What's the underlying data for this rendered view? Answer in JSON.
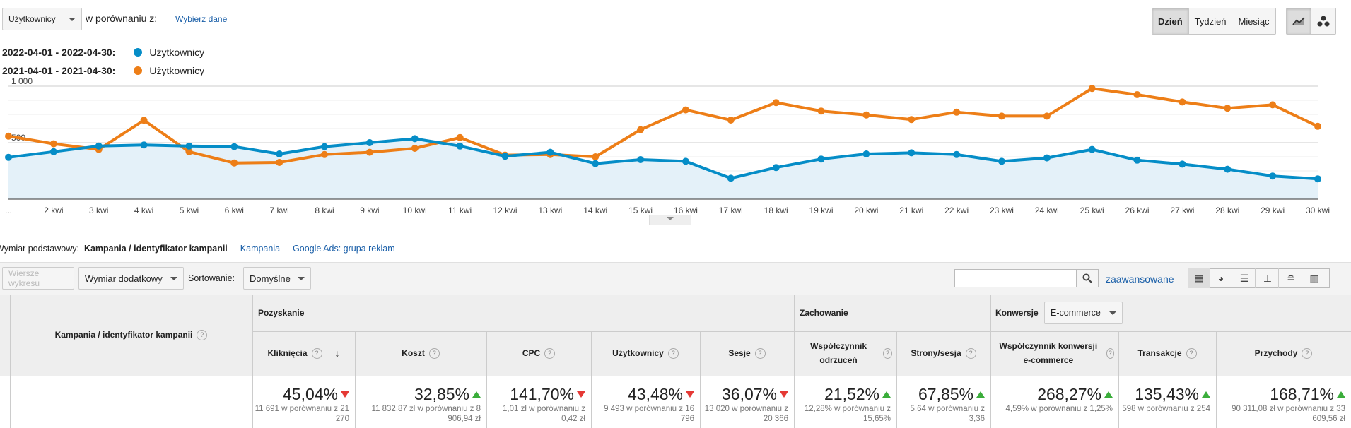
{
  "top": {
    "metric_select": "Użytkownicy",
    "compare_label": "w porównaniu z:",
    "choose_link": "Wybierz dane",
    "period_buttons": [
      "Dzień",
      "Tydzień",
      "Miesiąc"
    ],
    "active_period": "Dzień"
  },
  "legend": [
    {
      "range": "2022-04-01 - 2022-04-30:",
      "label": "Użytkownicy",
      "color": "#058dc7"
    },
    {
      "range": "2021-04-01 - 2021-04-30:",
      "label": "Użytkownicy",
      "color": "#ed7e17"
    }
  ],
  "chart_data": {
    "type": "line",
    "x": [
      "...",
      "2 kwi",
      "3 kwi",
      "4 kwi",
      "5 kwi",
      "6 kwi",
      "7 kwi",
      "8 kwi",
      "9 kwi",
      "10 kwi",
      "11 kwi",
      "12 kwi",
      "13 kwi",
      "14 kwi",
      "15 kwi",
      "16 kwi",
      "17 kwi",
      "18 kwi",
      "19 kwi",
      "20 kwi",
      "21 kwi",
      "22 kwi",
      "23 kwi",
      "24 kwi",
      "25 kwi",
      "26 kwi",
      "27 kwi",
      "28 kwi",
      "29 kwi",
      "30 kwi"
    ],
    "y_ticks": [
      "1 000",
      "500"
    ],
    "ylim": [
      0,
      1000
    ],
    "series": [
      {
        "name": "2022-04 Użytkownicy",
        "color": "#058dc7",
        "values": [
          370,
          420,
          470,
          480,
          470,
          465,
          400,
          465,
          500,
          535,
          470,
          380,
          415,
          315,
          350,
          335,
          185,
          280,
          355,
          400,
          410,
          395,
          335,
          365,
          440,
          345,
          310,
          265,
          205,
          180
        ]
      },
      {
        "name": "2021-04 Użytkownicy",
        "color": "#ed7e17",
        "values": [
          558,
          490,
          440,
          698,
          420,
          320,
          325,
          395,
          415,
          450,
          545,
          390,
          395,
          375,
          615,
          790,
          700,
          855,
          780,
          745,
          705,
          770,
          735,
          735,
          980,
          925,
          860,
          805,
          835,
          645
        ]
      }
    ]
  },
  "dimension": {
    "label": "Wymiar podstawowy:",
    "active": "Kampania / identyfikator kampanii",
    "options": [
      "Kampania",
      "Google Ads: grupa reklam"
    ]
  },
  "toolbar": {
    "chart_rows": "Wiersze wykresu",
    "secondary": "Wymiar dodatkowy",
    "sort_label": "Sortowanie:",
    "sort_value": "Domyślne",
    "advanced": "zaawansowane"
  },
  "table": {
    "dim_header": "Kampania / identyfikator kampanii",
    "groups": {
      "acquisition": "Pozyskanie",
      "behavior": "Zachowanie",
      "conversions": "Konwersje",
      "conv_select": "E-commerce"
    },
    "columns": [
      {
        "name": "Kliknięcia",
        "pct": "45,04%",
        "dir": "down",
        "sub": "11 691 w porównaniu z 21 270"
      },
      {
        "name": "Koszt",
        "pct": "32,85%",
        "dir": "up",
        "sub": "11 832,87 zł w porównaniu z 8 906,94 zł"
      },
      {
        "name": "CPC",
        "pct": "141,70%",
        "dir": "down",
        "sub": "1,01 zł w porównaniu z 0,42 zł"
      },
      {
        "name": "Użytkownicy",
        "pct": "43,48%",
        "dir": "down",
        "sub": "9 493 w porównaniu z 16 796"
      },
      {
        "name": "Sesje",
        "pct": "36,07%",
        "dir": "down",
        "sub": "13 020 w porównaniu z 20 366"
      },
      {
        "name": "Współczynnik odrzuceń",
        "pct": "21,52%",
        "dir": "up",
        "sub": "12,28% w porównaniu z 15,65%"
      },
      {
        "name": "Strony/sesja",
        "pct": "67,85%",
        "dir": "up",
        "sub": "5,64 w porównaniu z 3,36"
      },
      {
        "name": "Współczynnik konwersji e-commerce",
        "pct": "268,27%",
        "dir": "up",
        "sub": "4,59% w porównaniu z 1,25%"
      },
      {
        "name": "Transakcje",
        "pct": "135,43%",
        "dir": "up",
        "sub": "598 w porównaniu z 254"
      },
      {
        "name": "Przychody",
        "pct": "168,71%",
        "dir": "up",
        "sub": "90 311,08 zł w porównaniu z 33 609,56 zł"
      }
    ]
  }
}
